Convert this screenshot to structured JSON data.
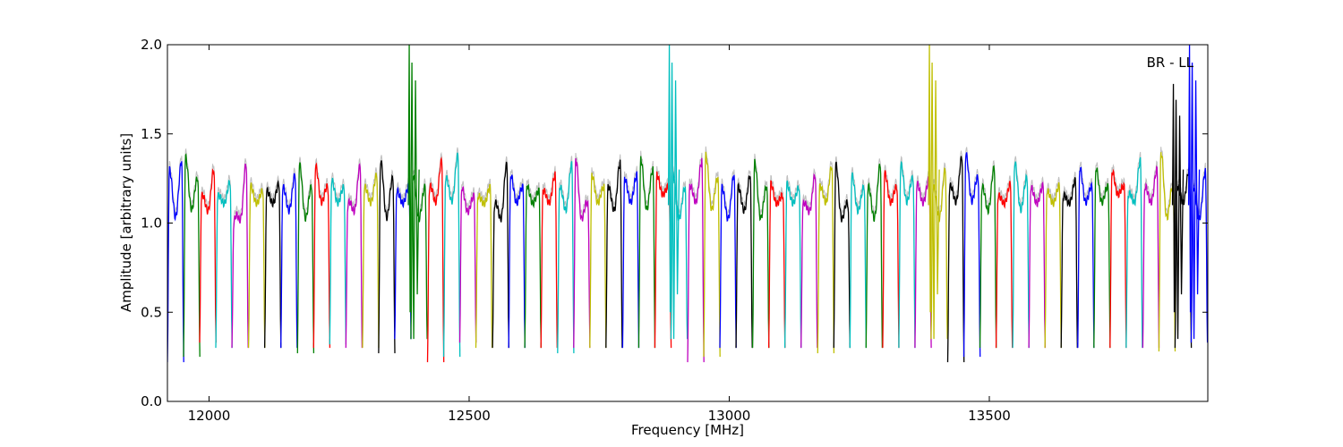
{
  "chart_data": {
    "type": "line",
    "annotation": "BR - LL",
    "xlabel": "Frequency [MHz]",
    "ylabel": "Amplitude [arbitrary units]",
    "xlim": [
      11920,
      13920
    ],
    "ylim": [
      0.0,
      2.0
    ],
    "xticks": [
      12000,
      12500,
      13000,
      13500
    ],
    "xtick_labels": [
      "12000",
      "12500",
      "13000",
      "13500"
    ],
    "yticks": [
      0.0,
      0.5,
      1.0,
      1.5,
      2.0
    ],
    "ytick_labels": [
      "0.0",
      "0.5",
      "1.0",
      "1.5",
      "2.0"
    ],
    "grid": false,
    "colors": [
      "#0000ff",
      "#008000",
      "#ff0000",
      "#00bfbf",
      "#bf00bf",
      "#bfbf00",
      "#000000"
    ],
    "shadow_color": "#bfbfbf",
    "channel_width_mhz": 31.25,
    "channels": [
      {
        "x0": 11920,
        "color": "#0000ff",
        "peak": 1.35,
        "floor": 0.22,
        "dip": 1.0,
        "edges": [
          1.3,
          1.35
        ]
      },
      {
        "x0": 11951,
        "color": "#008000",
        "peak": 1.37,
        "floor": 0.25,
        "dip": 1.05,
        "edges": [
          1.37,
          1.25
        ]
      },
      {
        "x0": 11982,
        "color": "#ff0000",
        "peak": 1.3,
        "floor": 0.33,
        "dip": 1.05,
        "edges": [
          1.15,
          1.3
        ]
      },
      {
        "x0": 12013,
        "color": "#00bfbf",
        "peak": 1.23,
        "floor": 0.3,
        "dip": 1.1,
        "edges": [
          1.15,
          1.23
        ]
      },
      {
        "x0": 12044,
        "color": "#bf00bf",
        "peak": 1.33,
        "floor": 0.3,
        "dip": 1.0,
        "edges": [
          1.0,
          1.33
        ]
      },
      {
        "x0": 12076,
        "color": "#bfbf00",
        "peak": 1.21,
        "floor": 0.3,
        "dip": 1.1,
        "edges": [
          1.21,
          1.18
        ]
      },
      {
        "x0": 12107,
        "color": "#000000",
        "peak": 1.22,
        "floor": 0.3,
        "dip": 1.1,
        "edges": [
          1.18,
          1.22
        ]
      },
      {
        "x0": 12138,
        "color": "#0000ff",
        "peak": 1.27,
        "floor": 0.3,
        "dip": 1.05,
        "edges": [
          1.2,
          1.27
        ]
      },
      {
        "x0": 12170,
        "color": "#008000",
        "peak": 1.33,
        "floor": 0.27,
        "dip": 1.0,
        "edges": [
          1.33,
          1.2
        ]
      },
      {
        "x0": 12201,
        "color": "#ff0000",
        "peak": 1.32,
        "floor": 0.3,
        "dip": 1.1,
        "edges": [
          1.32,
          1.2
        ]
      },
      {
        "x0": 12232,
        "color": "#00bfbf",
        "peak": 1.24,
        "floor": 0.32,
        "dip": 1.1,
        "edges": [
          1.24,
          1.2
        ]
      },
      {
        "x0": 12263,
        "color": "#bf00bf",
        "peak": 1.32,
        "floor": 0.3,
        "dip": 1.05,
        "edges": [
          1.1,
          1.32
        ]
      },
      {
        "x0": 12295,
        "color": "#bfbf00",
        "peak": 1.27,
        "floor": 0.3,
        "dip": 1.1,
        "edges": [
          1.2,
          1.27
        ]
      },
      {
        "x0": 12326,
        "color": "#000000",
        "peak": 1.35,
        "floor": 0.27,
        "dip": 1.0,
        "edges": [
          1.35,
          1.25
        ]
      },
      {
        "x0": 12357,
        "color": "#0000ff",
        "peak": 1.21,
        "floor": 0.35,
        "dip": 1.1,
        "edges": [
          1.18,
          1.21
        ]
      },
      {
        "x0": 12388,
        "color": "#008000",
        "peak": 1.27,
        "floor": 0.35,
        "dip": 1.0,
        "edges": [
          1.27,
          1.2
        ],
        "spike": 2.0
      },
      {
        "x0": 12420,
        "color": "#ff0000",
        "peak": 1.35,
        "floor": 0.22,
        "dip": 1.1,
        "edges": [
          1.2,
          1.35
        ]
      },
      {
        "x0": 12451,
        "color": "#00bfbf",
        "peak": 1.38,
        "floor": 0.25,
        "dip": 1.1,
        "edges": [
          1.25,
          1.38
        ]
      },
      {
        "x0": 12482,
        "color": "#bf00bf",
        "peak": 1.2,
        "floor": 0.33,
        "dip": 1.05,
        "edges": [
          1.2,
          1.15
        ]
      },
      {
        "x0": 12513,
        "color": "#bfbf00",
        "peak": 1.2,
        "floor": 0.3,
        "dip": 1.1,
        "edges": [
          1.15,
          1.2
        ]
      },
      {
        "x0": 12545,
        "color": "#000000",
        "peak": 1.33,
        "floor": 0.3,
        "dip": 1.0,
        "edges": [
          1.1,
          1.33
        ]
      },
      {
        "x0": 12576,
        "color": "#0000ff",
        "peak": 1.27,
        "floor": 0.3,
        "dip": 1.1,
        "edges": [
          1.27,
          1.2
        ]
      },
      {
        "x0": 12607,
        "color": "#008000",
        "peak": 1.21,
        "floor": 0.3,
        "dip": 1.1,
        "edges": [
          1.21,
          1.18
        ]
      },
      {
        "x0": 12638,
        "color": "#ff0000",
        "peak": 1.27,
        "floor": 0.3,
        "dip": 1.1,
        "edges": [
          1.18,
          1.27
        ]
      },
      {
        "x0": 12670,
        "color": "#00bfbf",
        "peak": 1.33,
        "floor": 0.27,
        "dip": 1.05,
        "edges": [
          1.2,
          1.33
        ]
      },
      {
        "x0": 12701,
        "color": "#bf00bf",
        "peak": 1.36,
        "floor": 0.3,
        "dip": 1.0,
        "edges": [
          1.36,
          1.1
        ]
      },
      {
        "x0": 12732,
        "color": "#bfbf00",
        "peak": 1.27,
        "floor": 0.3,
        "dip": 1.1,
        "edges": [
          1.27,
          1.2
        ]
      },
      {
        "x0": 12763,
        "color": "#000000",
        "peak": 1.34,
        "floor": 0.3,
        "dip": 1.05,
        "edges": [
          1.2,
          1.34
        ]
      },
      {
        "x0": 12795,
        "color": "#0000ff",
        "peak": 1.27,
        "floor": 0.3,
        "dip": 1.1,
        "edges": [
          1.25,
          1.27
        ]
      },
      {
        "x0": 12826,
        "color": "#008000",
        "peak": 1.36,
        "floor": 0.3,
        "dip": 1.05,
        "edges": [
          1.36,
          1.3
        ]
      },
      {
        "x0": 12857,
        "color": "#ff0000",
        "peak": 1.27,
        "floor": 0.3,
        "dip": 1.15,
        "edges": [
          1.27,
          1.2
        ]
      },
      {
        "x0": 12888,
        "color": "#00bfbf",
        "peak": 1.27,
        "floor": 0.35,
        "dip": 1.0,
        "edges": [
          1.27,
          1.2
        ],
        "spike": 2.0
      },
      {
        "x0": 12920,
        "color": "#bf00bf",
        "peak": 1.35,
        "floor": 0.22,
        "dip": 1.1,
        "edges": [
          1.2,
          1.35
        ]
      },
      {
        "x0": 12951,
        "color": "#bfbf00",
        "peak": 1.38,
        "floor": 0.25,
        "dip": 1.05,
        "edges": [
          1.38,
          1.25
        ]
      },
      {
        "x0": 12982,
        "color": "#0000ff",
        "peak": 1.27,
        "floor": 0.3,
        "dip": 1.0,
        "edges": [
          1.2,
          1.27
        ]
      },
      {
        "x0": 13013,
        "color": "#000000",
        "peak": 1.27,
        "floor": 0.3,
        "dip": 1.05,
        "edges": [
          1.2,
          1.27
        ]
      },
      {
        "x0": 13045,
        "color": "#008000",
        "peak": 1.34,
        "floor": 0.3,
        "dip": 1.0,
        "edges": [
          1.34,
          1.2
        ]
      },
      {
        "x0": 13076,
        "color": "#ff0000",
        "peak": 1.22,
        "floor": 0.3,
        "dip": 1.1,
        "edges": [
          1.22,
          1.15
        ]
      },
      {
        "x0": 13107,
        "color": "#00bfbf",
        "peak": 1.22,
        "floor": 0.3,
        "dip": 1.1,
        "edges": [
          1.22,
          1.2
        ]
      },
      {
        "x0": 13138,
        "color": "#bf00bf",
        "peak": 1.27,
        "floor": 0.3,
        "dip": 1.05,
        "edges": [
          1.1,
          1.27
        ]
      },
      {
        "x0": 13170,
        "color": "#bfbf00",
        "peak": 1.32,
        "floor": 0.27,
        "dip": 1.1,
        "edges": [
          1.2,
          1.32
        ]
      },
      {
        "x0": 13201,
        "color": "#000000",
        "peak": 1.33,
        "floor": 0.3,
        "dip": 1.0,
        "edges": [
          1.33,
          1.1
        ]
      },
      {
        "x0": 13232,
        "color": "#00bfbf",
        "peak": 1.27,
        "floor": 0.3,
        "dip": 1.05,
        "edges": [
          1.27,
          1.2
        ]
      },
      {
        "x0": 13263,
        "color": "#008000",
        "peak": 1.33,
        "floor": 0.3,
        "dip": 1.0,
        "edges": [
          1.2,
          1.33
        ]
      },
      {
        "x0": 13295,
        "color": "#ff0000",
        "peak": 1.28,
        "floor": 0.3,
        "dip": 1.1,
        "edges": [
          1.28,
          1.2
        ]
      },
      {
        "x0": 13326,
        "color": "#00bfbf",
        "peak": 1.33,
        "floor": 0.3,
        "dip": 1.1,
        "edges": [
          1.33,
          1.25
        ]
      },
      {
        "x0": 13357,
        "color": "#bf00bf",
        "peak": 1.25,
        "floor": 0.3,
        "dip": 1.1,
        "edges": [
          1.22,
          1.25
        ]
      },
      {
        "x0": 13388,
        "color": "#bfbf00",
        "peak": 1.3,
        "floor": 0.35,
        "dip": 1.0,
        "edges": [
          1.2,
          1.3
        ],
        "spike": 2.0
      },
      {
        "x0": 13420,
        "color": "#000000",
        "peak": 1.37,
        "floor": 0.22,
        "dip": 1.1,
        "edges": [
          1.2,
          1.37
        ]
      },
      {
        "x0": 13451,
        "color": "#0000ff",
        "peak": 1.39,
        "floor": 0.25,
        "dip": 1.1,
        "edges": [
          1.39,
          1.25
        ]
      },
      {
        "x0": 13482,
        "color": "#008000",
        "peak": 1.31,
        "floor": 0.3,
        "dip": 1.05,
        "edges": [
          1.2,
          1.31
        ]
      },
      {
        "x0": 13513,
        "color": "#ff0000",
        "peak": 1.22,
        "floor": 0.3,
        "dip": 1.1,
        "edges": [
          1.15,
          1.22
        ]
      },
      {
        "x0": 13545,
        "color": "#00bfbf",
        "peak": 1.34,
        "floor": 0.3,
        "dip": 1.05,
        "edges": [
          1.34,
          1.25
        ]
      },
      {
        "x0": 13576,
        "color": "#bf00bf",
        "peak": 1.21,
        "floor": 0.3,
        "dip": 1.1,
        "edges": [
          1.2,
          1.21
        ]
      },
      {
        "x0": 13607,
        "color": "#bfbf00",
        "peak": 1.21,
        "floor": 0.3,
        "dip": 1.1,
        "edges": [
          1.18,
          1.21
        ]
      },
      {
        "x0": 13638,
        "color": "#000000",
        "peak": 1.24,
        "floor": 0.3,
        "dip": 1.1,
        "edges": [
          1.15,
          1.24
        ]
      },
      {
        "x0": 13670,
        "color": "#0000ff",
        "peak": 1.31,
        "floor": 0.3,
        "dip": 1.1,
        "edges": [
          1.31,
          1.2
        ]
      },
      {
        "x0": 13701,
        "color": "#008000",
        "peak": 1.31,
        "floor": 0.3,
        "dip": 1.1,
        "edges": [
          1.31,
          1.2
        ]
      },
      {
        "x0": 13732,
        "color": "#ff0000",
        "peak": 1.29,
        "floor": 0.3,
        "dip": 1.15,
        "edges": [
          1.29,
          1.2
        ]
      },
      {
        "x0": 13763,
        "color": "#00bfbf",
        "peak": 1.35,
        "floor": 0.3,
        "dip": 1.1,
        "edges": [
          1.15,
          1.35
        ]
      },
      {
        "x0": 13795,
        "color": "#bf00bf",
        "peak": 1.3,
        "floor": 0.3,
        "dip": 1.1,
        "edges": [
          1.2,
          1.3
        ]
      },
      {
        "x0": 13826,
        "color": "#bfbf00",
        "peak": 1.4,
        "floor": 0.28,
        "dip": 1.0,
        "edges": [
          1.4,
          1.2
        ]
      },
      {
        "x0": 13857,
        "color": "#000000",
        "peak": 1.3,
        "floor": 0.3,
        "dip": 1.1,
        "edges": [
          1.2,
          1.3
        ],
        "spike": 1.78
      },
      {
        "x0": 13888,
        "color": "#0000ff",
        "peak": 1.29,
        "floor": 0.33,
        "dip": 1.0,
        "edges": [
          1.2,
          1.29
        ],
        "spike": 2.0
      }
    ]
  }
}
